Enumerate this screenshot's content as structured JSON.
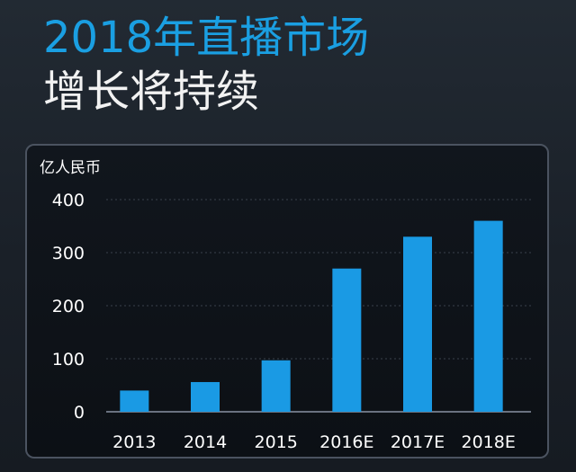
{
  "header": {
    "title": "2018年直播市场",
    "subtitle": "增长将持续"
  },
  "colors": {
    "title_accent": "#1a9fe2",
    "bar": "#1a9ae4",
    "panel_bg": "#0e1218"
  },
  "chart_data": {
    "type": "bar",
    "ylabel": "亿人民币",
    "xlabel": "",
    "categories": [
      "2013",
      "2014",
      "2015",
      "2016E",
      "2017E",
      "2018E"
    ],
    "values": [
      40,
      56,
      97,
      270,
      330,
      360
    ],
    "ylim": [
      0,
      400
    ],
    "yticks": [
      0,
      100,
      200,
      300,
      400
    ],
    "grid": true,
    "legend": "none"
  }
}
